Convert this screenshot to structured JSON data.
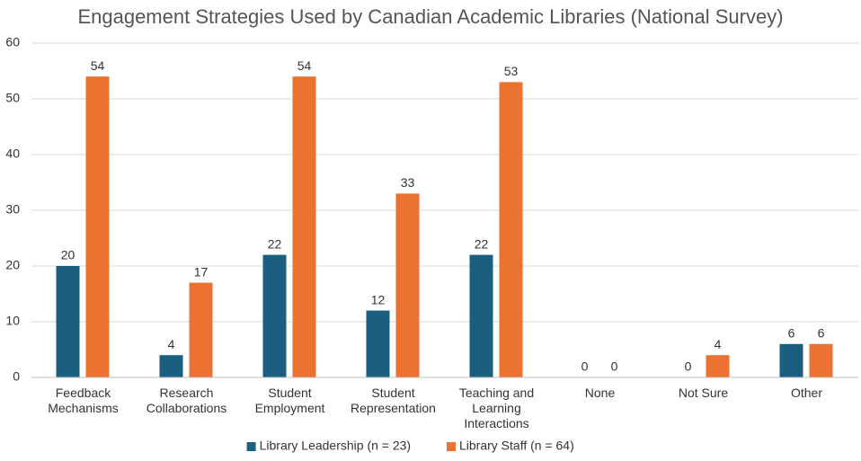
{
  "chart_data": {
    "type": "bar",
    "title": "Engagement Strategies Used by Canadian Academic Libraries (National Survey)",
    "categories": [
      "Feedback Mechanisms",
      "Research Collaborations",
      "Student Employment",
      "Student Representation",
      "Teaching and Learning Interactions",
      "None",
      "Not Sure",
      "Other"
    ],
    "series": [
      {
        "name": "Library Leadership (n = 23)",
        "color": "#1a5f7f",
        "values": [
          20,
          4,
          22,
          12,
          22,
          0,
          0,
          6
        ]
      },
      {
        "name": "Library Staff (n = 64)",
        "color": "#ec7232",
        "values": [
          54,
          17,
          54,
          33,
          53,
          0,
          4,
          6
        ]
      }
    ],
    "ylim": [
      0,
      60
    ],
    "yticks": [
      0,
      10,
      20,
      30,
      40,
      50,
      60
    ],
    "grid": true,
    "legend": "bottom"
  }
}
